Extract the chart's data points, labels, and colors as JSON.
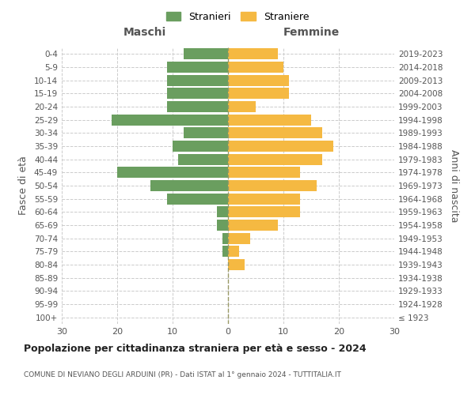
{
  "age_groups": [
    "100+",
    "95-99",
    "90-94",
    "85-89",
    "80-84",
    "75-79",
    "70-74",
    "65-69",
    "60-64",
    "55-59",
    "50-54",
    "45-49",
    "40-44",
    "35-39",
    "30-34",
    "25-29",
    "20-24",
    "15-19",
    "10-14",
    "5-9",
    "0-4"
  ],
  "birth_years": [
    "≤ 1923",
    "1924-1928",
    "1929-1933",
    "1934-1938",
    "1939-1943",
    "1944-1948",
    "1949-1953",
    "1954-1958",
    "1959-1963",
    "1964-1968",
    "1969-1973",
    "1974-1978",
    "1979-1983",
    "1984-1988",
    "1989-1993",
    "1994-1998",
    "1999-2003",
    "2004-2008",
    "2009-2013",
    "2014-2018",
    "2019-2023"
  ],
  "males": [
    0,
    0,
    0,
    0,
    0,
    1,
    1,
    2,
    2,
    11,
    14,
    20,
    9,
    10,
    8,
    21,
    11,
    11,
    11,
    11,
    8
  ],
  "females": [
    0,
    0,
    0,
    0,
    3,
    2,
    4,
    9,
    13,
    13,
    16,
    13,
    17,
    19,
    17,
    15,
    5,
    11,
    11,
    10,
    9
  ],
  "male_color": "#6a9e5f",
  "female_color": "#f5b942",
  "background_color": "#ffffff",
  "grid_color": "#cccccc",
  "title": "Popolazione per cittadinanza straniera per età e sesso - 2024",
  "subtitle": "COMUNE DI NEVIANO DEGLI ARDUINI (PR) - Dati ISTAT al 1° gennaio 2024 - TUTTITALIA.IT",
  "xlabel_left": "Maschi",
  "xlabel_right": "Femmine",
  "ylabel_left": "Fasce di età",
  "ylabel_right": "Anni di nascita",
  "legend_male": "Stranieri",
  "legend_female": "Straniere",
  "xlim": 30,
  "bar_height": 0.85
}
